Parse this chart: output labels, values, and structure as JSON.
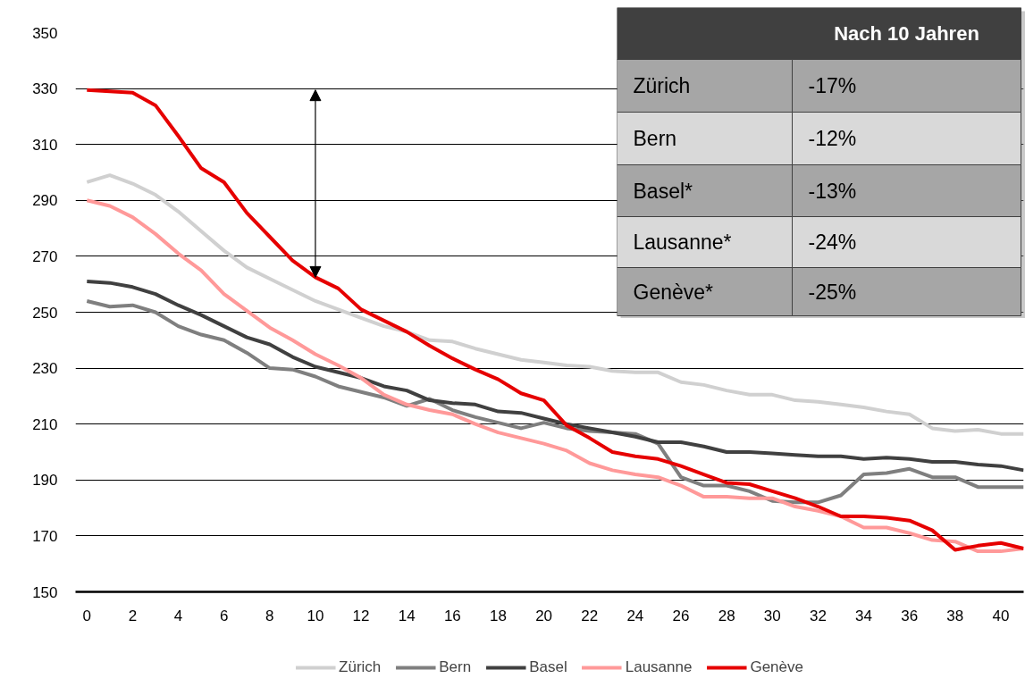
{
  "chart_data": [
    {
      "type": "line",
      "x": [
        0,
        1,
        2,
        3,
        4,
        5,
        6,
        7,
        8,
        9,
        10,
        11,
        12,
        13,
        14,
        15,
        16,
        17,
        18,
        19,
        20,
        21,
        22,
        23,
        24,
        25,
        26,
        27,
        28,
        29,
        30,
        31,
        32,
        33,
        34,
        35,
        36,
        37,
        38,
        39,
        40,
        41
      ],
      "series": [
        {
          "name": "Zürich",
          "color": "#d0d0d0",
          "values": [
            296.5,
            299,
            296,
            292,
            286,
            279,
            272,
            266,
            262,
            258,
            254,
            251,
            248,
            245,
            243,
            240,
            239.5,
            237,
            235,
            233,
            232,
            231,
            230.5,
            229,
            228.5,
            228.5,
            225,
            224,
            222,
            220.5,
            220.5,
            218.5,
            218,
            217,
            216,
            214.5,
            213.5,
            208.5,
            207.5,
            208,
            206.5,
            206.5
          ]
        },
        {
          "name": "Bern",
          "color": "#7f7f7f",
          "values": [
            254,
            252,
            252.5,
            250,
            245,
            242,
            240,
            235.5,
            230,
            229.5,
            227,
            223.5,
            221.5,
            219.5,
            216.5,
            219,
            215,
            212.5,
            210.5,
            208.5,
            210.5,
            208.5,
            207.5,
            207,
            206.5,
            203,
            191,
            188,
            188,
            186,
            182.5,
            182,
            182,
            184.5,
            192,
            192.5,
            194,
            191,
            191,
            187.5,
            187.5,
            187.5
          ]
        },
        {
          "name": "Basel",
          "color": "#404040",
          "values": [
            261,
            260.5,
            259,
            256.5,
            252.5,
            249,
            245,
            241,
            238.5,
            234,
            230.5,
            228.5,
            226.5,
            223.5,
            222,
            218.5,
            217.5,
            217,
            214.5,
            214,
            212,
            210,
            208.5,
            207,
            205.5,
            203.5,
            203.5,
            202,
            200,
            200,
            199.5,
            199,
            198.5,
            198.5,
            197.5,
            198,
            197.5,
            196.5,
            196.5,
            195.5,
            195,
            193.5
          ]
        },
        {
          "name": "Lausanne",
          "color": "#ff9999",
          "values": [
            290,
            288,
            284,
            278,
            271,
            265,
            256.5,
            250.5,
            244.5,
            240,
            235,
            231,
            226.5,
            220.5,
            217,
            215,
            213.5,
            210,
            207,
            205,
            203,
            200.5,
            196,
            193.5,
            192,
            191,
            188,
            184,
            184,
            183.5,
            183.5,
            180.5,
            179,
            177,
            173,
            173,
            171,
            168.5,
            168,
            164.5,
            164.5,
            165.5
          ]
        },
        {
          "name": "Genève",
          "color": "#e60000",
          "values": [
            329.5,
            329,
            328.5,
            324,
            313,
            301.5,
            296.5,
            285.5,
            277,
            268.5,
            262.5,
            258.5,
            251,
            247,
            243,
            238,
            233.5,
            229.5,
            226,
            221,
            218.5,
            209.5,
            205,
            200,
            198.5,
            197.5,
            195,
            192,
            189,
            188.5,
            186,
            183.5,
            180.5,
            177,
            177,
            176.5,
            175.5,
            172,
            165,
            166.5,
            167.5,
            165.5
          ]
        }
      ],
      "xlim": [
        -0.5,
        41
      ],
      "ylim": [
        150,
        350
      ],
      "xticks": [
        0,
        2,
        4,
        6,
        8,
        10,
        12,
        14,
        16,
        18,
        20,
        22,
        24,
        26,
        28,
        30,
        32,
        34,
        36,
        38,
        40
      ],
      "yticks": [
        150,
        170,
        190,
        210,
        230,
        250,
        270,
        290,
        310,
        330,
        350
      ],
      "grid": "y",
      "legend": "bottom",
      "marker": "none",
      "line_style": "solid"
    },
    {
      "type": "other",
      "annotations": [
        "Nach 10 Jahren",
        "Zürich",
        "-17%",
        "Bern",
        "-12%",
        "Basel*",
        "-13%",
        "Lausanne*",
        "-24%",
        "Genève*",
        "-25%"
      ]
    }
  ]
}
